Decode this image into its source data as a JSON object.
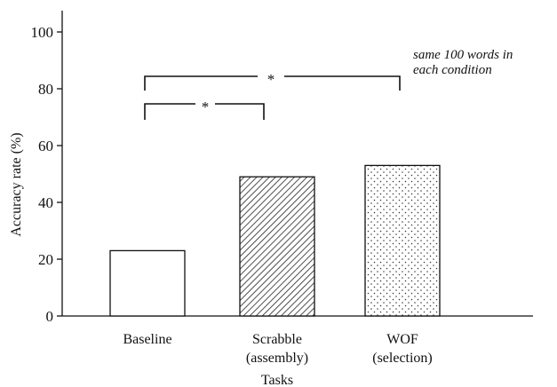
{
  "chart_data": {
    "type": "bar",
    "categories": [
      [
        "Baseline"
      ],
      [
        "Scrabble",
        "(assembly)"
      ],
      [
        "WOF",
        "(selection)"
      ]
    ],
    "values": [
      23,
      49,
      53
    ],
    "bar_fills": [
      "none",
      "diagonal-hatch",
      "dots"
    ],
    "ylabel": "Accuracy rate (%)",
    "xlabel": "Tasks",
    "ylim": [
      0,
      100
    ],
    "yticks": [
      0,
      20,
      40,
      60,
      80,
      100
    ],
    "annotation": [
      "same 100 words in",
      "each condition"
    ],
    "significance": [
      {
        "from": 0,
        "to": 1,
        "label": "*"
      },
      {
        "from": 0,
        "to": 2,
        "label": "*"
      }
    ],
    "grid": false,
    "legend": "none"
  }
}
